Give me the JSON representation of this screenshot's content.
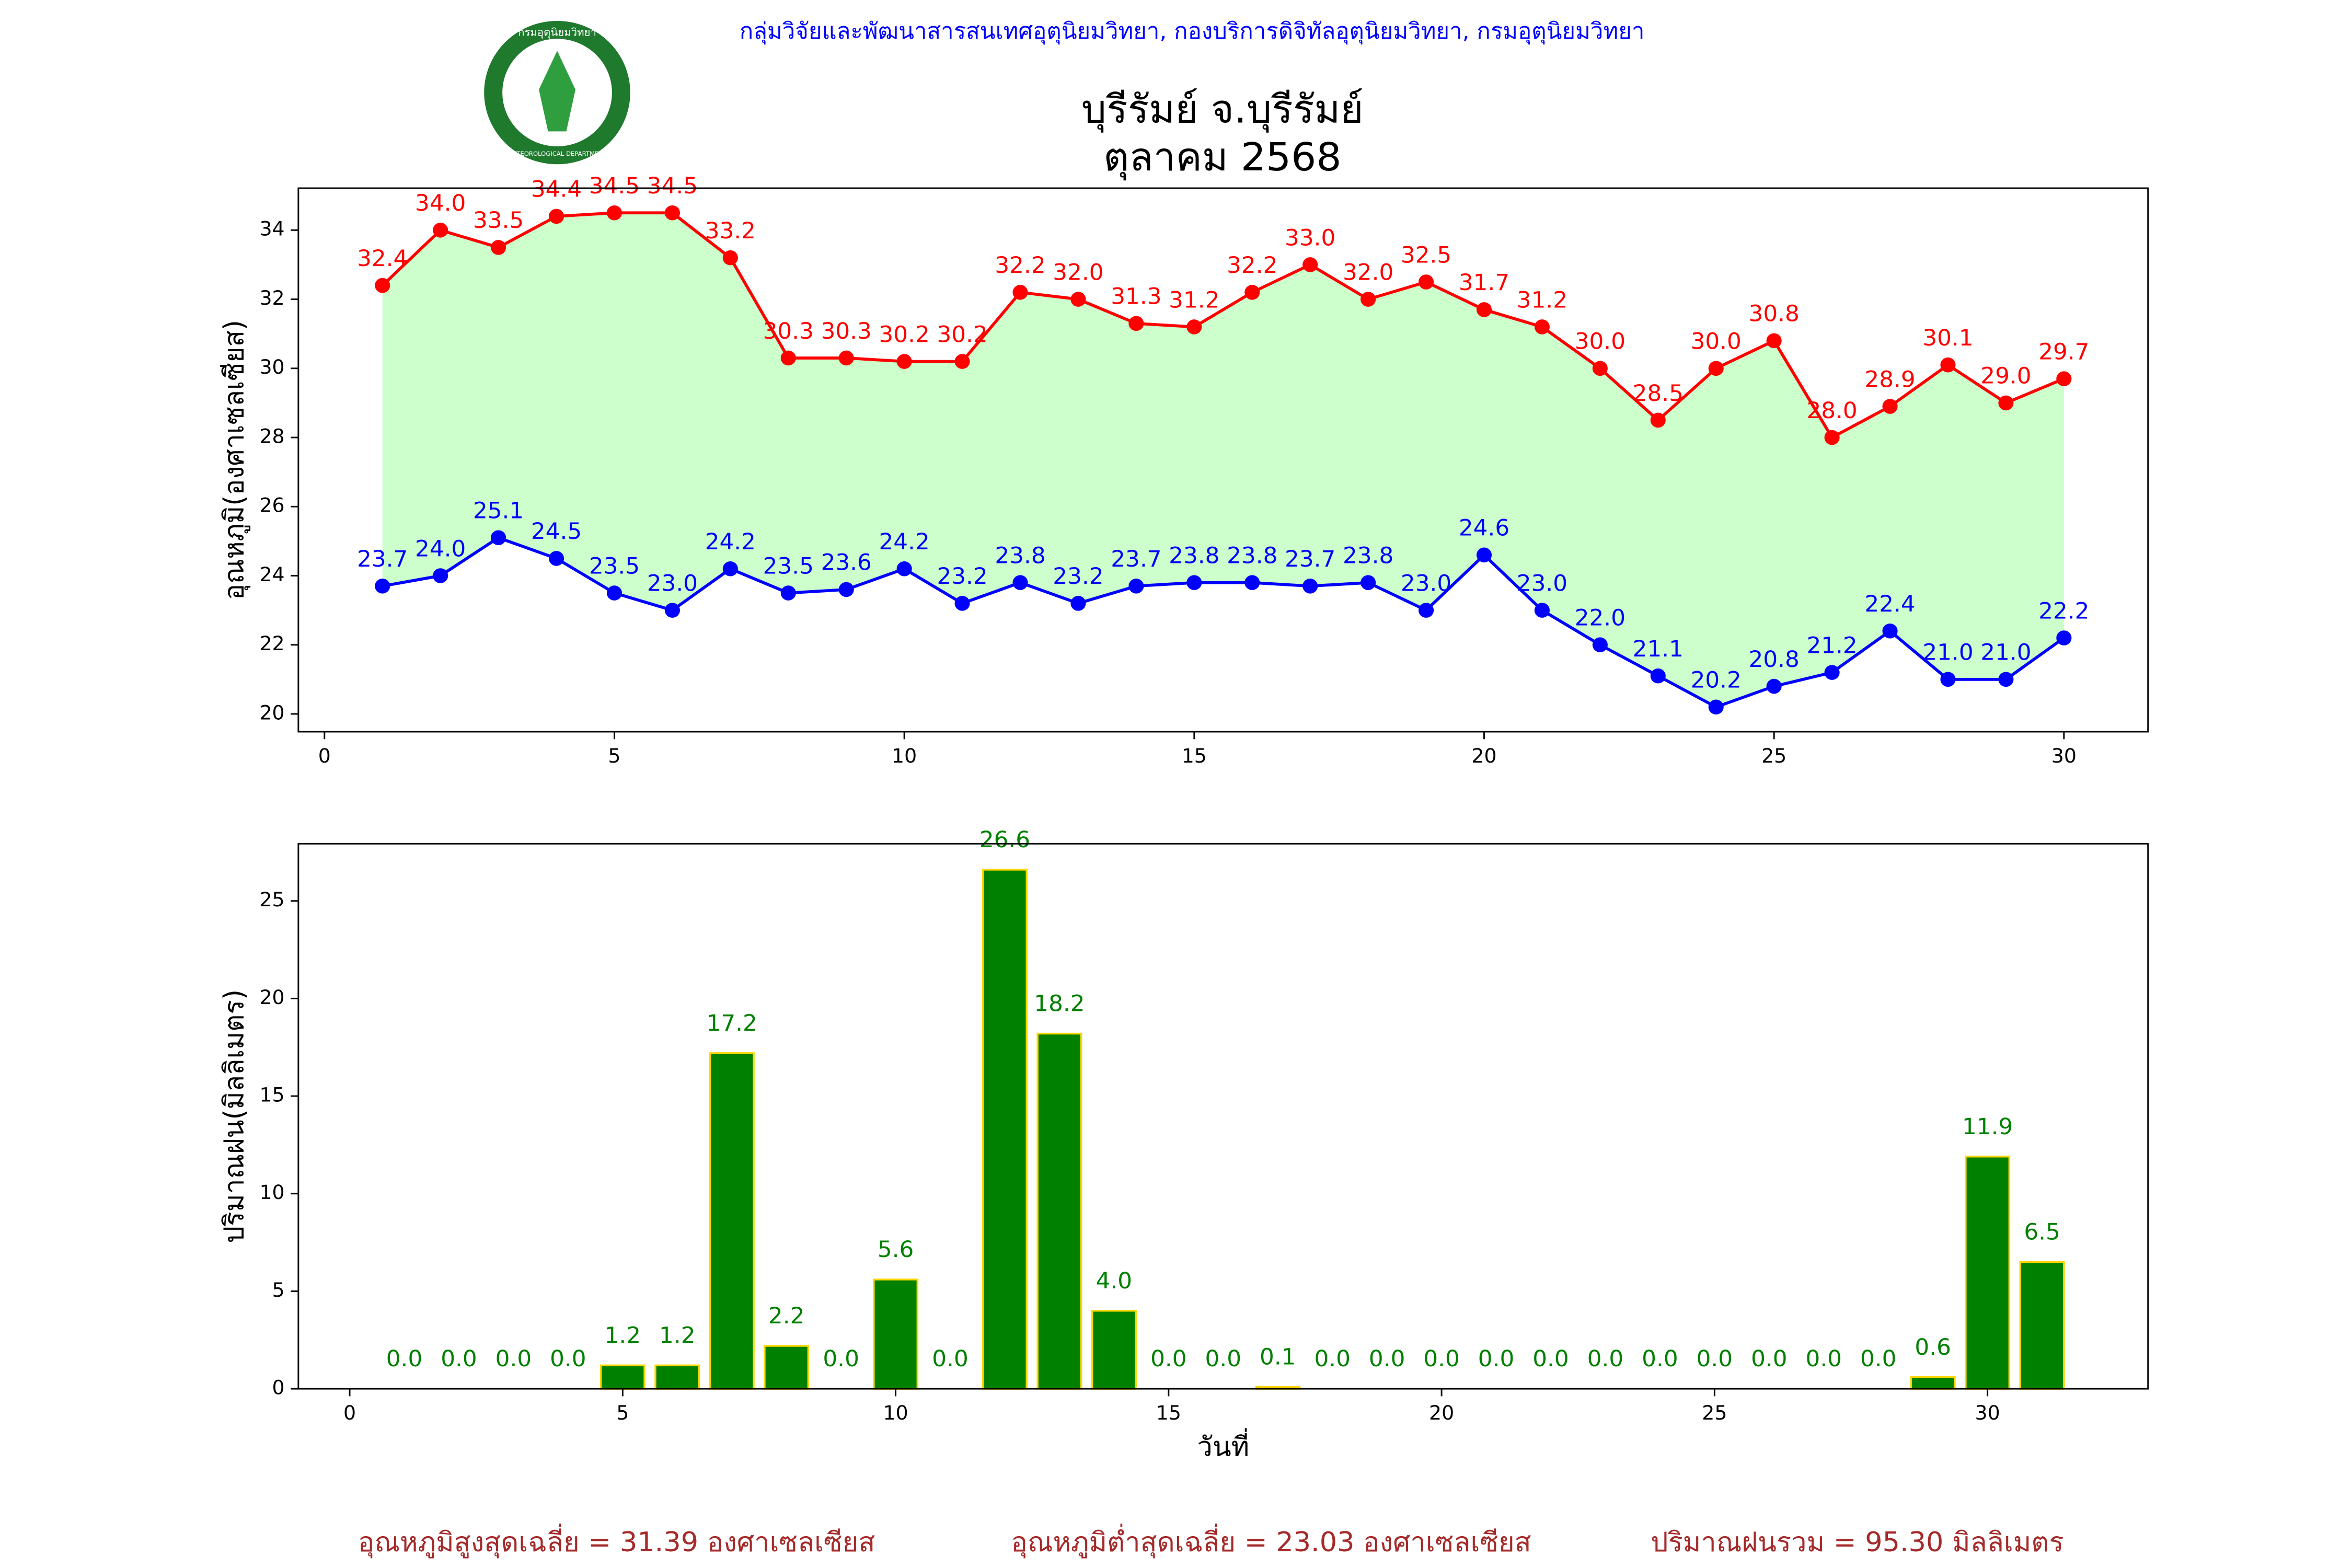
{
  "header": "กลุ่มวิจัยและพัฒนาสารสนเทศอุตุนิยมวิทยา, กองบริการดิจิทัลอุตุนิยมวิทยา, กรมอุตุนิยมวิทยา",
  "logo": {
    "top_text": "กรมอุตุนิยมวิทยา",
    "bottom_text": "METEOROLOGICAL DEPARTMENT"
  },
  "chart_data": [
    {
      "type": "line",
      "title": "บุรีรัมย์ จ.บุรีรัมย์",
      "subtitle": "ตุลาคม 2568",
      "y_label": "อุณหภูมิ(องศาเซลเซียส)",
      "x": [
        1,
        2,
        3,
        4,
        5,
        6,
        7,
        8,
        9,
        10,
        11,
        12,
        13,
        14,
        15,
        16,
        17,
        18,
        19,
        20,
        21,
        22,
        23,
        24,
        25,
        26,
        27,
        28,
        29,
        30
      ],
      "series": [
        {
          "name": "max",
          "color": "#ff0000",
          "values": [
            32.4,
            34.0,
            33.5,
            34.4,
            34.5,
            34.5,
            33.2,
            30.3,
            30.3,
            30.2,
            30.2,
            32.2,
            32.0,
            31.3,
            31.2,
            32.2,
            33.0,
            32.0,
            32.5,
            31.7,
            31.2,
            30.0,
            28.5,
            30.0,
            30.8,
            28.0,
            28.9,
            30.1,
            29.0,
            29.7
          ],
          "value_labels": [
            "32.4",
            "34.0",
            "33.5",
            "34.4",
            "34.5",
            "34.5",
            "33.2",
            "30.3",
            "30.3",
            "30.2",
            "30.2",
            "32.2",
            "32.0",
            "31.3",
            "31.2",
            "32.2",
            "33.0",
            "32.0",
            "32.5",
            "31.7",
            "31.2",
            "30.0",
            "28.5",
            "30.0",
            "30.8",
            "28.0",
            "28.9",
            "30.1",
            "29.0",
            "29.7"
          ]
        },
        {
          "name": "min",
          "color": "#0000ff",
          "values": [
            23.7,
            24.0,
            25.1,
            24.5,
            23.5,
            23.0,
            24.2,
            23.5,
            23.6,
            24.2,
            23.2,
            23.8,
            23.2,
            23.7,
            23.8,
            23.8,
            23.7,
            23.8,
            23.0,
            24.6,
            23.0,
            22.0,
            21.1,
            20.2,
            20.8,
            21.2,
            22.4,
            21.0,
            21.0,
            22.2
          ],
          "value_labels": [
            "23.7",
            "24.0",
            "25.1",
            "24.5",
            "23.5",
            "23.0",
            "24.2",
            "23.5",
            "23.6",
            "24.2",
            "23.2",
            "23.8",
            "23.2",
            "23.7",
            "23.8",
            "23.8",
            "23.7",
            "23.8",
            "23.0",
            "24.6",
            "23.0",
            "22.0",
            "21.1",
            "20.2",
            "20.8",
            "21.2",
            "22.4",
            "21.0",
            "21.0",
            "22.2"
          ]
        }
      ],
      "fill_color": "#ccffcc",
      "xlim": [
        -0.45,
        31.45
      ],
      "xticks": [
        0,
        5,
        10,
        15,
        20,
        25,
        30
      ],
      "ylim": [
        19.485,
        35.215
      ],
      "yticks": [
        20,
        22,
        24,
        26,
        28,
        30,
        32,
        34
      ]
    },
    {
      "type": "bar",
      "y_label": "ปริมาณฝน(มิลลิเมตร)",
      "x_label": "วันที่",
      "x": [
        1,
        2,
        3,
        4,
        5,
        6,
        7,
        8,
        9,
        10,
        11,
        12,
        13,
        14,
        15,
        16,
        17,
        18,
        19,
        20,
        21,
        22,
        23,
        24,
        25,
        26,
        27,
        28,
        29,
        30,
        31
      ],
      "values": [
        0,
        0,
        0,
        0,
        1.2,
        1.2,
        17.2,
        2.2,
        0,
        5.6,
        0,
        26.6,
        18.2,
        4.0,
        0,
        0,
        0.1,
        0,
        0,
        0,
        0,
        0,
        0,
        0,
        0,
        0,
        0,
        0,
        0.6,
        11.9,
        6.5
      ],
      "value_labels": [
        "0.0",
        "0.0",
        "0.0",
        "0.0",
        "1.2",
        "1.2",
        "17.2",
        "2.2",
        "0.0",
        "5.6",
        "0.0",
        "26.6",
        "18.2",
        "4.0",
        "0.0",
        "0.0",
        "0.1",
        "0.0",
        "0.0",
        "0.0",
        "0.0",
        "0.0",
        "0.0",
        "0.0",
        "0.0",
        "0.0",
        "0.0",
        "0.0",
        "0.6",
        "11.9",
        "6.5"
      ],
      "color": "#008000",
      "edge_color": "#ffd700",
      "xlim": [
        -0.94,
        32.94
      ],
      "xticks": [
        0,
        5,
        10,
        15,
        20,
        25,
        30
      ],
      "ylim": [
        0,
        27.93
      ],
      "yticks": [
        0,
        5,
        10,
        15,
        20,
        25
      ]
    }
  ],
  "footer": [
    "อุณหภูมิสูงสุดเฉลี่ย = 31.39 องศาเซลเซียส",
    "อุณหภูมิต่ำสุดเฉลี่ย = 23.03 องศาเซลเซียส",
    "ปริมาณฝนรวม = 95.30 มิลลิเมตร"
  ]
}
